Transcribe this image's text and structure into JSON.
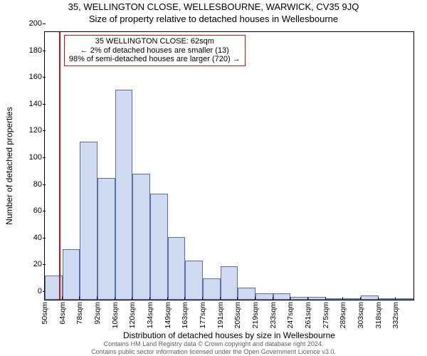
{
  "title": "35, WELLINGTON CLOSE, WELLESBOURNE, WARWICK, CV35 9JQ",
  "subtitle": "Size of property relative to detached houses in Wellesbourne",
  "chart": {
    "type": "histogram",
    "ylabel": "Number of detached properties",
    "xlabel": "Distribution of detached houses by size in Wellesbourne",
    "ylim": [
      0,
      200
    ],
    "ytick_step": 20,
    "background_color": "#ffffff",
    "axis_color": "#000000",
    "bar_fill": "#cfdaf0",
    "bar_border": "#5a6ea0",
    "bar_relwidth": 1.0,
    "refline_color": "#c01515",
    "refline_x": 62,
    "annotation": {
      "line1": "35 WELLINGTON CLOSE: 62sqm",
      "line2": "← 2% of detached houses are smaller (13)",
      "line3": "98% of semi-detached houses are larger (720) →",
      "border_color": "#c01515",
      "font_size": 11
    },
    "x_start": 50,
    "x_bin_width": 14.2,
    "n_bins": 21,
    "xtick_labels": [
      "50sqm",
      "64sqm",
      "78sqm",
      "92sqm",
      "106sqm",
      "120sqm",
      "134sqm",
      "149sqm",
      "163sqm",
      "177sqm",
      "191sqm",
      "205sqm",
      "219sqm",
      "233sqm",
      "247sqm",
      "261sqm",
      "275sqm",
      "289sqm",
      "303sqm",
      "318sqm",
      "332sqm"
    ],
    "values": [
      18,
      38,
      118,
      91,
      157,
      94,
      79,
      47,
      29,
      16,
      25,
      9,
      5,
      5,
      2,
      2,
      1,
      1,
      3,
      1,
      1
    ],
    "label_fontsize": 12,
    "tick_fontsize": 11
  },
  "footer": {
    "line1": "Contains HM Land Registry data © Crown copyright and database right 2024.",
    "line2": "Contains public sector information licensed under the Open Government Licence v3.0.",
    "color": "#606060",
    "font_size": 9
  }
}
